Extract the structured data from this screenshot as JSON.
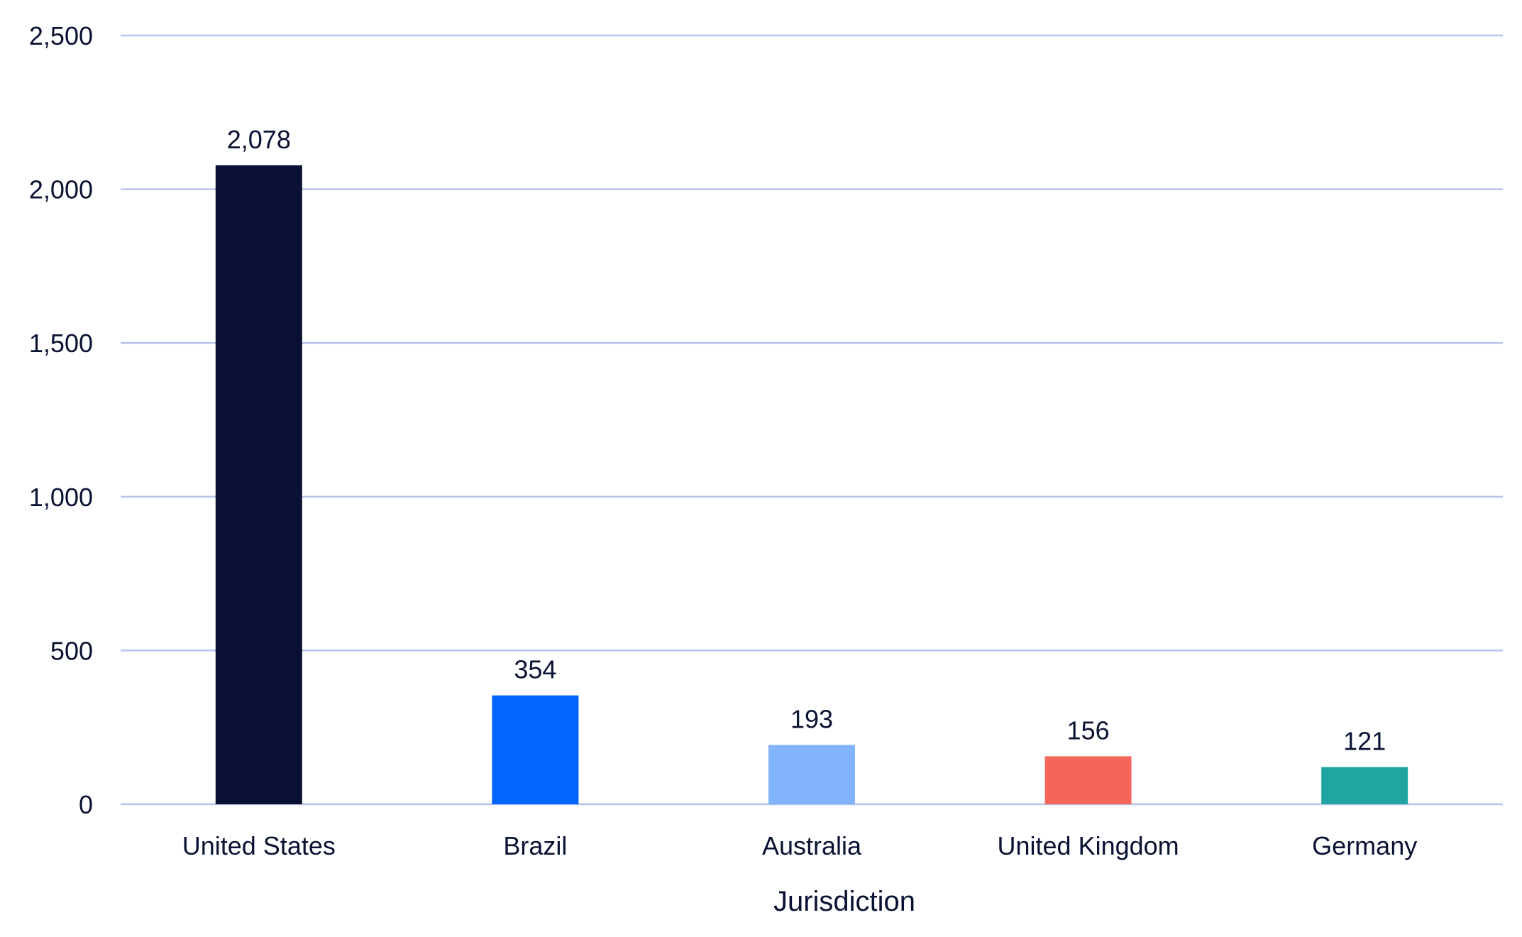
{
  "chart_data": {
    "type": "bar",
    "title": "",
    "xlabel": "Jurisdiction",
    "ylabel": "",
    "categories": [
      "United States",
      "Brazil",
      "Australia",
      "United Kingdom",
      "Germany"
    ],
    "values": [
      2078,
      354,
      193,
      156,
      121
    ],
    "value_labels": [
      "2,078",
      "354",
      "193",
      "156",
      "121"
    ],
    "colors": [
      "#0a1033",
      "#0066ff",
      "#82b4fd",
      "#f4665a",
      "#20a6a2"
    ],
    "ylim": [
      0,
      2500
    ],
    "yticks": [
      0,
      500,
      1000,
      1500,
      2000,
      2500
    ],
    "ytick_labels": [
      "0",
      "500",
      "1,000",
      "1,500",
      "2,000",
      "2,500"
    ],
    "grid": true,
    "legend": "none"
  }
}
